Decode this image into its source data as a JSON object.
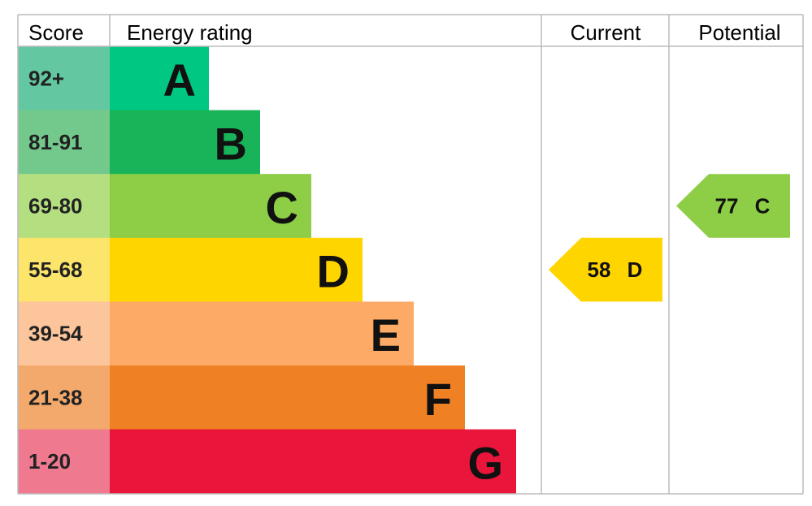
{
  "header": {
    "score": "Score",
    "rating": "Energy rating",
    "current": "Current",
    "potential": "Potential"
  },
  "rows": [
    {
      "score": "92+",
      "band": "A",
      "color": "#00c781",
      "light": "#63c8a2"
    },
    {
      "score": "81-91",
      "band": "B",
      "color": "#19b459",
      "light": "#73c98b"
    },
    {
      "score": "69-80",
      "band": "C",
      "color": "#8dce46",
      "light": "#b3df80"
    },
    {
      "score": "55-68",
      "band": "D",
      "color": "#ffd500",
      "light": "#fde46b"
    },
    {
      "score": "39-54",
      "band": "E",
      "color": "#fcaa65",
      "light": "#fcc59b"
    },
    {
      "score": "21-38",
      "band": "F",
      "color": "#ef8023",
      "light": "#f3a96c"
    },
    {
      "score": "1-20",
      "band": "G",
      "color": "#e9153b",
      "light": "#ef7a90"
    }
  ],
  "current": {
    "value": 58,
    "band": "D"
  },
  "potential": {
    "value": 77,
    "band": "C"
  }
}
